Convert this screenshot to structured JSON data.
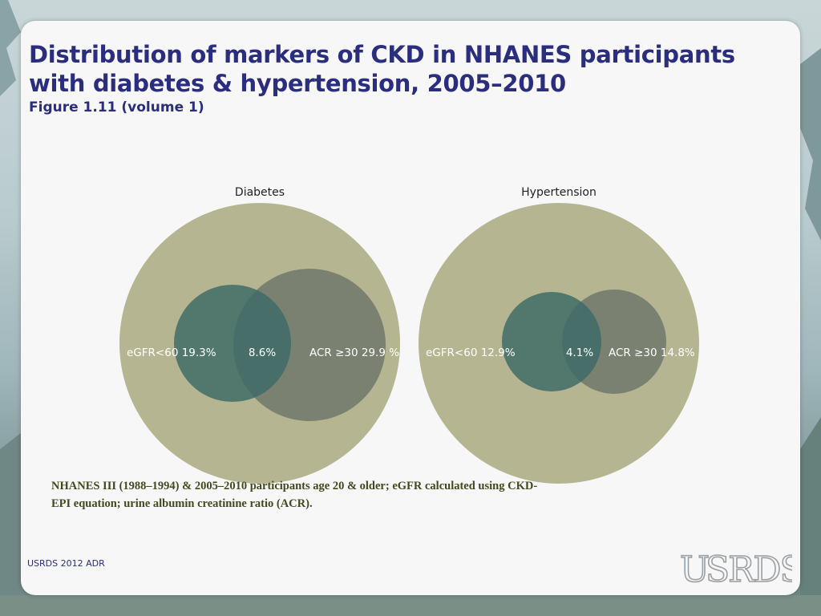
{
  "slide": {
    "title": "Distribution of markers of CKD in NHANES participants with diabetes & hypertension, 2005–2010",
    "subtitle": "Figure 1.11 (volume 1)",
    "note": "NHANES III (1988–1994) & 2005–2010 participants age 20 & older; eGFR calculated using CKD-EPI equation; urine albumin creatinine ratio (ACR).",
    "footer": "USRDS 2012 ADR",
    "logo_text": "USRDS"
  },
  "chart_data": [
    {
      "type": "venn",
      "title": "Diabetes",
      "sets": [
        {
          "label": "eGFR<60 19.3%",
          "value": 19.3
        },
        {
          "label": "ACR ≥30 29.9 %",
          "value": 29.9
        }
      ],
      "overlap": {
        "label": "8.6%",
        "value": 8.6
      }
    },
    {
      "type": "venn",
      "title": "Hypertension",
      "sets": [
        {
          "label": "eGFR<60 12.9%",
          "value": 12.9
        },
        {
          "label": "ACR ≥30 14.8%",
          "value": 14.8
        }
      ],
      "overlap": {
        "label": "4.1%",
        "value": 4.1
      }
    }
  ],
  "colors": {
    "outer_circle": "#b5b591",
    "egfr_circle": "#3c6a66",
    "acr_circle": "#737b6e",
    "title": "#2b2d7e",
    "note": "#404a1e"
  }
}
